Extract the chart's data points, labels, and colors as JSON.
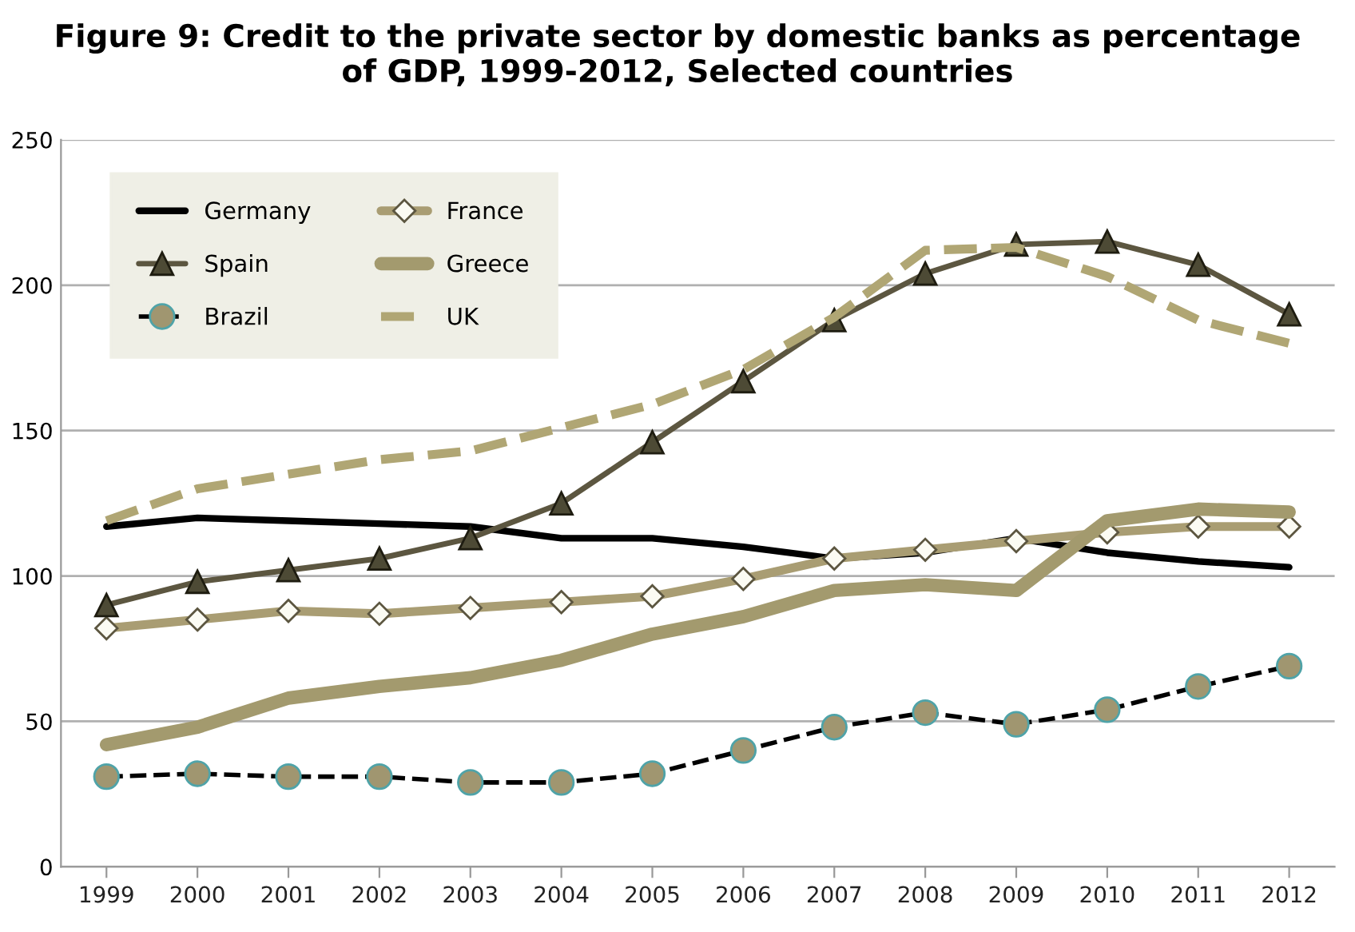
{
  "chart_data": {
    "type": "line",
    "title": "Figure 9: Credit to the private sector by domestic banks as percentage\nof GDP, 1999-2012, Selected countries",
    "categories": [
      "1999",
      "2000",
      "2001",
      "2002",
      "2003",
      "2004",
      "2005",
      "2006",
      "2007",
      "2008",
      "2009",
      "2010",
      "2011",
      "2012"
    ],
    "series": [
      {
        "name": "Germany",
        "color": "#000000",
        "marker": "none",
        "line_style": "solid",
        "values": [
          117,
          120,
          119,
          118,
          117,
          113,
          113,
          110,
          106,
          108,
          113,
          108,
          105,
          103
        ]
      },
      {
        "name": "France",
        "color": "#a99d73",
        "marker": "diamond",
        "line_style": "solid",
        "values": [
          82,
          85,
          88,
          87,
          89,
          91,
          93,
          99,
          106,
          109,
          112,
          115,
          117,
          117
        ]
      },
      {
        "name": "Spain",
        "color": "#5c5640",
        "marker": "triangle",
        "line_style": "solid",
        "values": [
          90,
          98,
          102,
          106,
          113,
          125,
          146,
          167,
          188,
          204,
          214,
          215,
          207,
          190
        ]
      },
      {
        "name": "Greece",
        "color": "#a39a6e",
        "marker": "none",
        "line_style": "solid",
        "values": [
          42,
          48,
          58,
          62,
          65,
          71,
          80,
          86,
          95,
          97,
          95,
          119,
          123,
          122
        ]
      },
      {
        "name": "Brazil",
        "color": "#000000",
        "marker": "circle",
        "line_style": "dashed",
        "values": [
          31,
          32,
          31,
          31,
          29,
          29,
          32,
          40,
          48,
          53,
          49,
          54,
          62,
          69
        ]
      },
      {
        "name": "UK",
        "color": "#b0a674",
        "marker": "none",
        "line_style": "dashed",
        "values": [
          119,
          130,
          135,
          140,
          143,
          151,
          159,
          171,
          189,
          212,
          213,
          203,
          188,
          180
        ]
      }
    ],
    "ylim": [
      0,
      250
    ],
    "yticks": [
      0,
      50,
      100,
      150,
      200,
      250
    ],
    "grid": "y",
    "legend": "top left"
  }
}
